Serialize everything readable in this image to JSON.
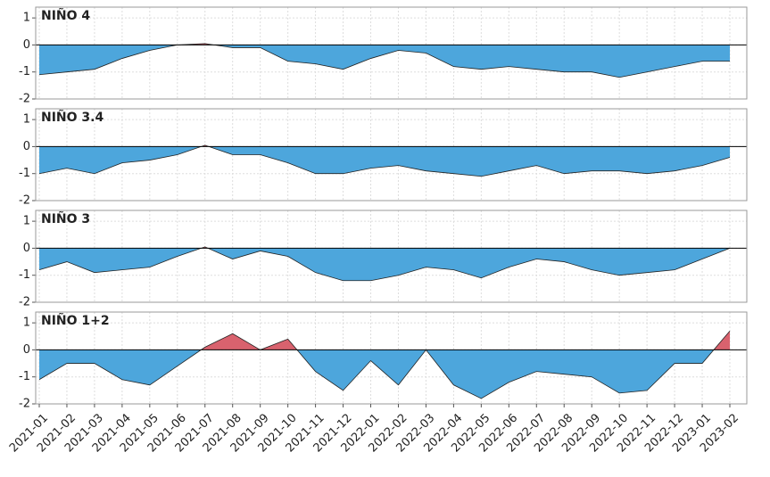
{
  "chart_data": [
    {
      "type": "area",
      "title": "NIÑO 4",
      "x": [
        "2021-01",
        "2021-02",
        "2021-03",
        "2021-04",
        "2021-05",
        "2021-06",
        "2021-07",
        "2021-08",
        "2021-09",
        "2021-10",
        "2021-11",
        "2021-12",
        "2022-01",
        "2022-02",
        "2022-03",
        "2022-04",
        "2022-05",
        "2022-06",
        "2022-07",
        "2022-08",
        "2022-09",
        "2022-10",
        "2022-11",
        "2022-12",
        "2023-01",
        "2023-02"
      ],
      "values": [
        -1.1,
        -1.0,
        -0.9,
        -0.5,
        -0.2,
        0,
        0.05,
        -0.1,
        -0.1,
        -0.6,
        -0.7,
        -0.9,
        -0.5,
        -0.2,
        -0.3,
        -0.8,
        -0.9,
        -0.8,
        -0.9,
        -1.0,
        -1.0,
        -1.2,
        -1.0,
        -0.8,
        -0.6,
        -0.6
      ],
      "color_positive": "#d9626e",
      "color_negative": "#4da6dc",
      "ylim": [
        -2,
        1.4
      ],
      "yticks": [
        -2,
        -1,
        0,
        1
      ],
      "grid": true
    },
    {
      "type": "area",
      "title": "NIÑO 3.4",
      "x": [
        "2021-01",
        "2021-02",
        "2021-03",
        "2021-04",
        "2021-05",
        "2021-06",
        "2021-07",
        "2021-08",
        "2021-09",
        "2021-10",
        "2021-11",
        "2021-12",
        "2022-01",
        "2022-02",
        "2022-03",
        "2022-04",
        "2022-05",
        "2022-06",
        "2022-07",
        "2022-08",
        "2022-09",
        "2022-10",
        "2022-11",
        "2022-12",
        "2023-01",
        "2023-02"
      ],
      "values": [
        -1.0,
        -0.8,
        -1.0,
        -0.6,
        -0.5,
        -0.3,
        0.05,
        -0.3,
        -0.3,
        -0.6,
        -1.0,
        -1.0,
        -0.8,
        -0.7,
        -0.9,
        -1.0,
        -1.1,
        -0.9,
        -0.7,
        -1.0,
        -0.9,
        -0.9,
        -1.0,
        -0.9,
        -0.7,
        -0.4
      ],
      "color_positive": "#d9626e",
      "color_negative": "#4da6dc",
      "ylim": [
        -2,
        1.4
      ],
      "yticks": [
        -2,
        -1,
        0,
        1
      ],
      "grid": true
    },
    {
      "type": "area",
      "title": "NIÑO 3",
      "x": [
        "2021-01",
        "2021-02",
        "2021-03",
        "2021-04",
        "2021-05",
        "2021-06",
        "2021-07",
        "2021-08",
        "2021-09",
        "2021-10",
        "2021-11",
        "2021-12",
        "2022-01",
        "2022-02",
        "2022-03",
        "2022-04",
        "2022-05",
        "2022-06",
        "2022-07",
        "2022-08",
        "2022-09",
        "2022-10",
        "2022-11",
        "2022-12",
        "2023-01",
        "2023-02"
      ],
      "values": [
        -0.8,
        -0.5,
        -0.9,
        -0.8,
        -0.7,
        -0.3,
        0.05,
        -0.4,
        -0.1,
        -0.3,
        -0.9,
        -1.2,
        -1.2,
        -1.0,
        -0.7,
        -0.8,
        -1.1,
        -0.7,
        -0.4,
        -0.5,
        -0.8,
        -1.0,
        -0.9,
        -0.8,
        -0.4,
        0
      ],
      "color_positive": "#d9626e",
      "color_negative": "#4da6dc",
      "ylim": [
        -2,
        1.4
      ],
      "yticks": [
        -2,
        -1,
        0,
        1
      ],
      "grid": true
    },
    {
      "type": "area",
      "title": "NIÑO 1+2",
      "x": [
        "2021-01",
        "2021-02",
        "2021-03",
        "2021-04",
        "2021-05",
        "2021-06",
        "2021-07",
        "2021-08",
        "2021-09",
        "2021-10",
        "2021-11",
        "2021-12",
        "2022-01",
        "2022-02",
        "2022-03",
        "2022-04",
        "2022-05",
        "2022-06",
        "2022-07",
        "2022-08",
        "2022-09",
        "2022-10",
        "2022-11",
        "2022-12",
        "2023-01",
        "2023-02"
      ],
      "values": [
        -1.1,
        -0.5,
        -0.5,
        -1.1,
        -1.3,
        -0.6,
        0.1,
        0.6,
        0.0,
        0.4,
        -0.8,
        -1.5,
        -0.4,
        -1.3,
        0.0,
        -1.3,
        -1.8,
        -1.2,
        -0.8,
        -0.9,
        -1.0,
        -1.6,
        -1.5,
        -0.5,
        -0.5,
        0.7
      ],
      "color_positive": "#d9626e",
      "color_negative": "#4da6dc",
      "ylim": [
        -2,
        1.4
      ],
      "yticks": [
        -2,
        -1,
        0,
        1
      ],
      "grid": true
    }
  ]
}
